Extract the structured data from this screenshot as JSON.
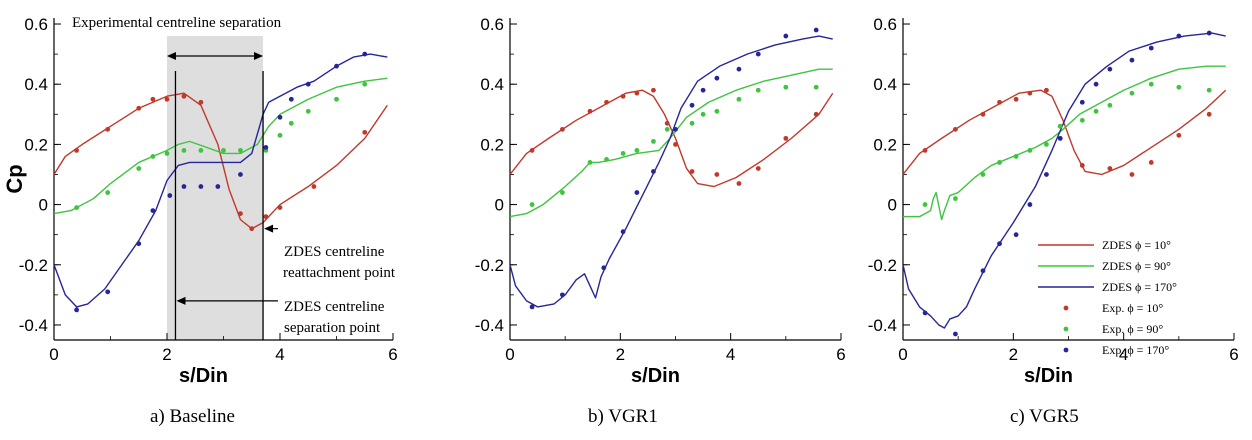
{
  "colors": {
    "red": "#c0392b",
    "green": "#3ec43e",
    "blue": "#26269a"
  },
  "chart_data": [
    {
      "type": "line",
      "caption": "a)   Baseline",
      "xlabel": "s/Din",
      "ylabel": "Cp",
      "xlim": [
        0,
        6
      ],
      "ylim": [
        -0.45,
        0.62
      ],
      "xticks": [
        0,
        2,
        4,
        6
      ],
      "yticks": [
        -0.4,
        -0.2,
        0,
        0.2,
        0.4,
        0.6
      ],
      "annotations": {
        "experimental": "Experimental centreline separation",
        "reattach_1": "ZDES centreline",
        "reattach_2": "reattachment point",
        "separation_1": "ZDES centreline",
        "separation_2": "separation point"
      },
      "shaded_region": [
        2.0,
        3.7
      ],
      "series": [
        {
          "color": "red",
          "kind": "line",
          "x": [
            0,
            0.2,
            0.5,
            1.0,
            1.5,
            2.0,
            2.3,
            2.6,
            2.9,
            3.1,
            3.3,
            3.5,
            3.7,
            4.0,
            4.5,
            5.0,
            5.5,
            5.9
          ],
          "y": [
            0.1,
            0.16,
            0.2,
            0.26,
            0.32,
            0.36,
            0.37,
            0.33,
            0.2,
            0.05,
            -0.05,
            -0.08,
            -0.06,
            0.0,
            0.06,
            0.13,
            0.22,
            0.33
          ]
        },
        {
          "color": "green",
          "kind": "line",
          "x": [
            0,
            0.3,
            0.7,
            1.0,
            1.5,
            2.0,
            2.2,
            2.4,
            2.7,
            3.0,
            3.3,
            3.6,
            3.8,
            4.0,
            4.5,
            5.0,
            5.5,
            5.9
          ],
          "y": [
            -0.03,
            -0.02,
            0.02,
            0.07,
            0.14,
            0.18,
            0.2,
            0.21,
            0.19,
            0.17,
            0.17,
            0.2,
            0.26,
            0.3,
            0.35,
            0.39,
            0.41,
            0.42
          ]
        },
        {
          "color": "blue",
          "kind": "line",
          "x": [
            0,
            0.2,
            0.4,
            0.6,
            0.9,
            1.2,
            1.5,
            1.8,
            2.0,
            2.2,
            2.4,
            2.7,
            3.0,
            3.3,
            3.5,
            3.7,
            3.8,
            4.0,
            4.3,
            4.6,
            5.0,
            5.3,
            5.6,
            5.9
          ],
          "y": [
            -0.2,
            -0.3,
            -0.34,
            -0.33,
            -0.28,
            -0.2,
            -0.12,
            -0.02,
            0.08,
            0.13,
            0.14,
            0.14,
            0.14,
            0.14,
            0.17,
            0.3,
            0.34,
            0.36,
            0.39,
            0.41,
            0.46,
            0.49,
            0.5,
            0.49
          ]
        },
        {
          "color": "red",
          "kind": "points",
          "x": [
            0.4,
            0.95,
            1.5,
            1.75,
            2.0,
            2.3,
            2.6,
            3.3,
            3.5,
            3.75,
            4.0,
            4.6,
            5.5
          ],
          "y": [
            0.18,
            0.25,
            0.32,
            0.35,
            0.35,
            0.36,
            0.34,
            -0.03,
            -0.08,
            -0.04,
            -0.01,
            0.06,
            0.24
          ]
        },
        {
          "color": "green",
          "kind": "points",
          "x": [
            0.4,
            0.95,
            1.5,
            1.75,
            2.0,
            2.3,
            2.6,
            3.0,
            3.3,
            3.75,
            4.0,
            4.2,
            4.5,
            5.0,
            5.5
          ],
          "y": [
            -0.01,
            0.04,
            0.12,
            0.16,
            0.17,
            0.18,
            0.18,
            0.18,
            0.18,
            0.18,
            0.23,
            0.27,
            0.31,
            0.35,
            0.4
          ]
        },
        {
          "color": "blue",
          "kind": "points",
          "x": [
            0.4,
            0.95,
            1.5,
            1.75,
            2.05,
            2.3,
            2.6,
            2.9,
            3.3,
            3.75,
            4.0,
            4.2,
            4.5,
            5.0,
            5.5
          ],
          "y": [
            -0.35,
            -0.29,
            -0.13,
            -0.02,
            0.03,
            0.06,
            0.06,
            0.06,
            0.1,
            0.19,
            0.29,
            0.35,
            0.4,
            0.46,
            0.5
          ]
        }
      ]
    },
    {
      "type": "line",
      "caption": "b)   VGR1",
      "xlabel": "s/Din",
      "ylabel": "",
      "xlim": [
        0,
        6
      ],
      "ylim": [
        -0.45,
        0.62
      ],
      "xticks": [
        0,
        2,
        4,
        6
      ],
      "yticks": [
        -0.4,
        -0.2,
        0,
        0.2,
        0.4,
        0.6
      ],
      "series": [
        {
          "color": "red",
          "kind": "line",
          "x": [
            0,
            0.3,
            0.7,
            1.2,
            1.7,
            2.1,
            2.4,
            2.6,
            2.8,
            3.0,
            3.2,
            3.4,
            3.7,
            4.1,
            4.6,
            5.1,
            5.6,
            5.85
          ],
          "y": [
            0.1,
            0.17,
            0.22,
            0.28,
            0.33,
            0.37,
            0.38,
            0.36,
            0.3,
            0.22,
            0.12,
            0.07,
            0.06,
            0.09,
            0.15,
            0.22,
            0.3,
            0.37
          ]
        },
        {
          "color": "green",
          "kind": "line",
          "x": [
            0,
            0.3,
            0.6,
            1.0,
            1.3,
            1.45,
            1.6,
            1.9,
            2.3,
            2.7,
            2.9,
            3.2,
            3.6,
            4.1,
            4.6,
            5.1,
            5.6,
            5.85
          ],
          "y": [
            -0.04,
            -0.03,
            0.0,
            0.06,
            0.11,
            0.14,
            0.14,
            0.15,
            0.17,
            0.18,
            0.22,
            0.29,
            0.34,
            0.38,
            0.41,
            0.43,
            0.45,
            0.45
          ]
        },
        {
          "color": "blue",
          "kind": "line",
          "x": [
            0,
            0.1,
            0.3,
            0.5,
            0.8,
            1.0,
            1.2,
            1.35,
            1.45,
            1.55,
            1.65,
            1.8,
            2.1,
            2.4,
            2.7,
            2.9,
            3.1,
            3.4,
            3.8,
            4.3,
            4.8,
            5.3,
            5.6,
            5.85
          ],
          "y": [
            -0.2,
            -0.27,
            -0.32,
            -0.34,
            -0.33,
            -0.3,
            -0.25,
            -0.23,
            -0.27,
            -0.31,
            -0.24,
            -0.18,
            -0.08,
            0.03,
            0.14,
            0.22,
            0.32,
            0.41,
            0.46,
            0.5,
            0.53,
            0.55,
            0.56,
            0.55
          ]
        },
        {
          "color": "red",
          "kind": "points",
          "x": [
            0.4,
            0.95,
            1.45,
            1.75,
            2.05,
            2.3,
            2.6,
            2.85,
            3.0,
            3.3,
            3.75,
            4.15,
            4.5,
            5.0,
            5.55
          ],
          "y": [
            0.18,
            0.25,
            0.31,
            0.34,
            0.36,
            0.37,
            0.38,
            0.27,
            0.2,
            0.11,
            0.1,
            0.07,
            0.12,
            0.22,
            0.3
          ]
        },
        {
          "color": "green",
          "kind": "points",
          "x": [
            0.4,
            0.95,
            1.45,
            1.75,
            2.05,
            2.3,
            2.6,
            2.85,
            3.3,
            3.5,
            3.75,
            4.15,
            4.5,
            5.0,
            5.55
          ],
          "y": [
            0.0,
            0.04,
            0.14,
            0.15,
            0.17,
            0.18,
            0.21,
            0.25,
            0.27,
            0.3,
            0.31,
            0.35,
            0.38,
            0.39,
            0.39
          ]
        },
        {
          "color": "blue",
          "kind": "points",
          "x": [
            0.4,
            0.95,
            1.7,
            2.05,
            2.3,
            2.6,
            3.0,
            3.3,
            3.5,
            3.75,
            4.15,
            4.5,
            5.0,
            5.55
          ],
          "y": [
            -0.34,
            -0.3,
            -0.21,
            -0.09,
            0.04,
            0.11,
            0.25,
            0.33,
            0.38,
            0.42,
            0.45,
            0.5,
            0.56,
            0.58
          ]
        }
      ]
    },
    {
      "type": "line",
      "caption": "c)   VGR5",
      "xlabel": "s/Din",
      "ylabel": "",
      "xlim": [
        0,
        6
      ],
      "ylim": [
        -0.45,
        0.62
      ],
      "xticks": [
        0,
        2,
        4,
        6
      ],
      "yticks": [
        -0.4,
        -0.2,
        0,
        0.2,
        0.4,
        0.6
      ],
      "legend_position": "lower-right",
      "legend": [
        {
          "label": "ZDES ϕ = 10°",
          "color": "red",
          "kind": "line"
        },
        {
          "label": "ZDES ϕ = 90°",
          "color": "green",
          "kind": "line"
        },
        {
          "label": "ZDES ϕ = 170°",
          "color": "blue",
          "kind": "line"
        },
        {
          "label": "Exp. ϕ = 10°",
          "color": "red",
          "kind": "points"
        },
        {
          "label": "Exp. ϕ = 90°",
          "color": "green",
          "kind": "points"
        },
        {
          "label": "Exp. ϕ = 170°",
          "color": "blue",
          "kind": "points"
        }
      ],
      "series": [
        {
          "color": "red",
          "kind": "line",
          "x": [
            0,
            0.3,
            0.7,
            1.2,
            1.7,
            2.1,
            2.5,
            2.7,
            2.9,
            3.1,
            3.3,
            3.6,
            4.0,
            4.5,
            5.0,
            5.5,
            5.85
          ],
          "y": [
            0.1,
            0.17,
            0.22,
            0.28,
            0.33,
            0.37,
            0.38,
            0.36,
            0.28,
            0.18,
            0.11,
            0.1,
            0.13,
            0.19,
            0.25,
            0.32,
            0.38
          ]
        },
        {
          "color": "green",
          "kind": "line",
          "x": [
            0,
            0.3,
            0.5,
            0.55,
            0.6,
            0.7,
            0.75,
            0.85,
            1.0,
            1.3,
            1.6,
            2.0,
            2.4,
            2.7,
            2.9,
            3.2,
            3.6,
            4.0,
            4.5,
            5.0,
            5.5,
            5.85
          ],
          "y": [
            -0.04,
            -0.04,
            -0.02,
            0.02,
            0.04,
            -0.05,
            -0.02,
            0.03,
            0.04,
            0.09,
            0.13,
            0.16,
            0.19,
            0.22,
            0.25,
            0.3,
            0.34,
            0.38,
            0.42,
            0.45,
            0.46,
            0.46
          ]
        },
        {
          "color": "blue",
          "kind": "line",
          "x": [
            0,
            0.1,
            0.3,
            0.5,
            0.65,
            0.75,
            0.85,
            1.0,
            1.15,
            1.3,
            1.6,
            2.0,
            2.4,
            2.7,
            3.0,
            3.3,
            3.7,
            4.1,
            4.6,
            5.1,
            5.6,
            5.85
          ],
          "y": [
            -0.2,
            -0.28,
            -0.34,
            -0.37,
            -0.4,
            -0.41,
            -0.38,
            -0.37,
            -0.34,
            -0.28,
            -0.17,
            -0.06,
            0.06,
            0.18,
            0.31,
            0.4,
            0.46,
            0.51,
            0.54,
            0.56,
            0.57,
            0.56
          ]
        },
        {
          "color": "red",
          "kind": "points",
          "x": [
            0.4,
            0.95,
            1.45,
            1.75,
            2.05,
            2.3,
            2.6,
            2.85,
            3.25,
            3.75,
            4.15,
            4.5,
            5.0,
            5.55
          ],
          "y": [
            0.18,
            0.25,
            0.3,
            0.34,
            0.35,
            0.37,
            0.38,
            0.26,
            0.13,
            0.12,
            0.1,
            0.14,
            0.23,
            0.3
          ]
        },
        {
          "color": "green",
          "kind": "points",
          "x": [
            0.4,
            0.95,
            1.45,
            1.75,
            2.05,
            2.3,
            2.6,
            2.85,
            3.25,
            3.5,
            3.75,
            4.15,
            4.5,
            5.0,
            5.55
          ],
          "y": [
            0.0,
            0.02,
            0.1,
            0.14,
            0.16,
            0.18,
            0.2,
            0.26,
            0.28,
            0.31,
            0.33,
            0.37,
            0.4,
            0.39,
            0.38
          ]
        },
        {
          "color": "blue",
          "kind": "points",
          "x": [
            0.4,
            0.95,
            1.45,
            1.75,
            2.05,
            2.3,
            2.6,
            2.85,
            3.25,
            3.5,
            3.75,
            4.15,
            4.5,
            5.0,
            5.55
          ],
          "y": [
            -0.36,
            -0.43,
            -0.22,
            -0.13,
            -0.1,
            0.0,
            0.1,
            0.22,
            0.34,
            0.4,
            0.45,
            0.48,
            0.52,
            0.56,
            0.57
          ]
        }
      ]
    }
  ]
}
